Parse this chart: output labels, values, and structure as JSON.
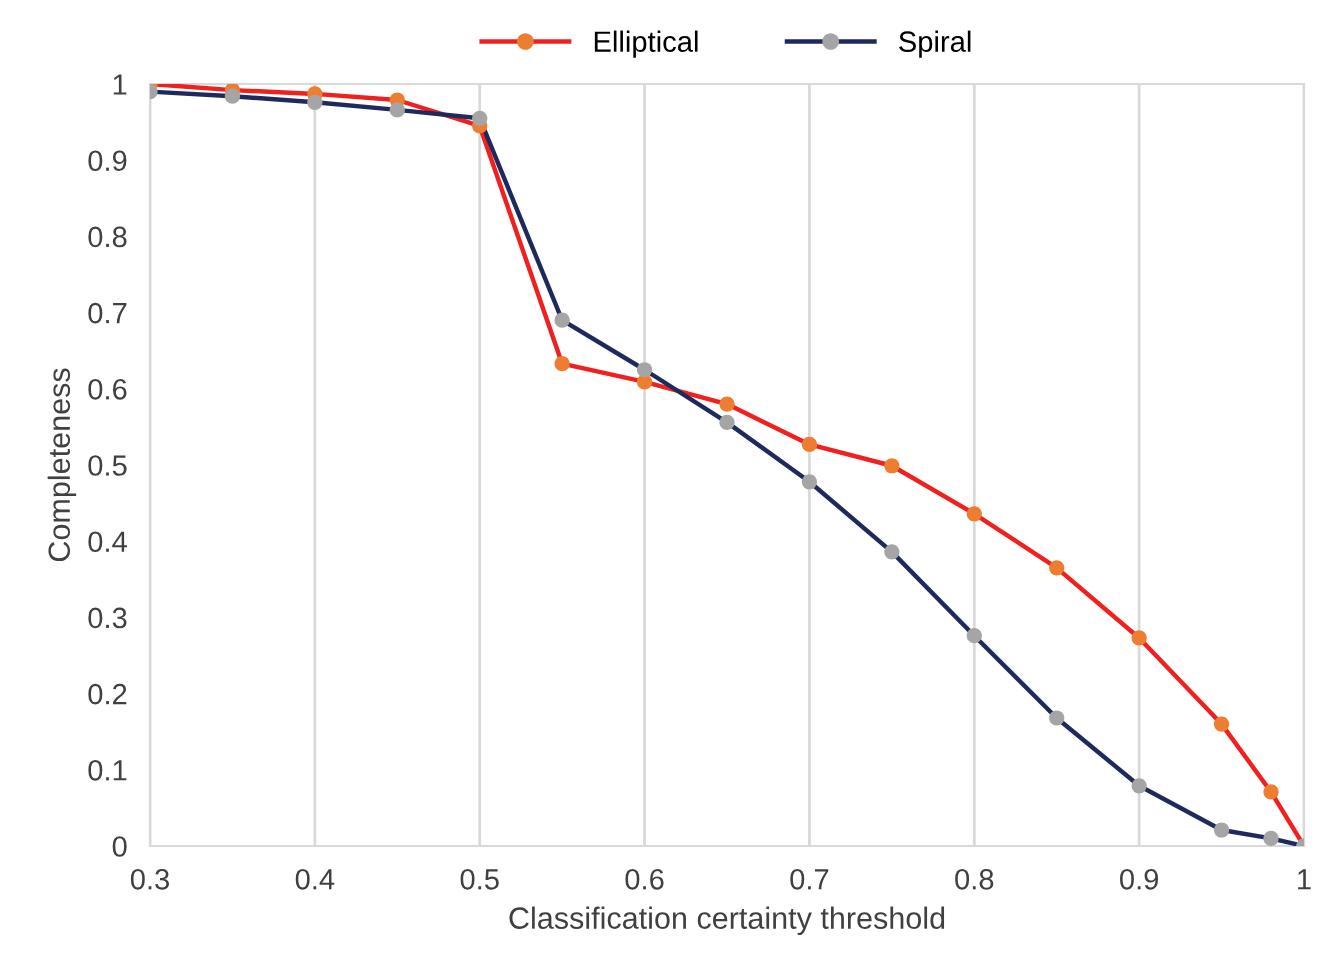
{
  "chart_data": {
    "type": "line",
    "xlabel": "Classification certainty threshold",
    "ylabel": "Completeness",
    "x": [
      0.3,
      0.35,
      0.4,
      0.45,
      0.5,
      0.55,
      0.6,
      0.65,
      0.7,
      0.75,
      0.8,
      0.85,
      0.9,
      0.95,
      0.98,
      1.0
    ],
    "series": [
      {
        "name": "Elliptical",
        "color": "#f0201f",
        "colors": [
          "#ed7d31",
          "#ed7d31",
          "#ed7d31",
          "#ed7d31",
          "#ed7d31",
          "#ed7d31",
          "#ed7d31",
          "#ed7d31",
          "#ed7d31",
          "#ed7d31",
          "#ed7d31",
          "#ed7d31",
          "#ed7d31",
          "#ed7d31",
          "#ed7d31",
          "#a5a5a5"
        ],
        "values": [
          1.0,
          0.992,
          0.987,
          0.979,
          0.945,
          0.633,
          0.609,
          0.58,
          0.527,
          0.499,
          0.436,
          0.365,
          0.273,
          0.16,
          0.071,
          0.0
        ]
      },
      {
        "name": "Spiral",
        "color": "#1f2a5c",
        "colors": [
          "#a5a5a5",
          "#a5a5a5",
          "#a5a5a5",
          "#a5a5a5",
          "#a5a5a5",
          "#a5a5a5",
          "#a5a5a5",
          "#a5a5a5",
          "#a5a5a5",
          "#a5a5a5",
          "#a5a5a5",
          "#a5a5a5",
          "#a5a5a5",
          "#a5a5a5",
          "#a5a5a5",
          "#a5a5a5"
        ],
        "values": [
          0.99,
          0.984,
          0.976,
          0.966,
          0.955,
          0.69,
          0.625,
          0.556,
          0.478,
          0.386,
          0.276,
          0.168,
          0.079,
          0.021,
          0.01,
          0.0
        ]
      }
    ],
    "xlim": [
      0.3,
      1.0
    ],
    "xticks": [
      0.3,
      0.4,
      0.5,
      0.6,
      0.7,
      0.8,
      0.9,
      1
    ],
    "ylim": [
      0,
      1.0
    ],
    "yticks": [
      0,
      0.1,
      0.2,
      0.3,
      0.4,
      0.5,
      0.6,
      0.7,
      0.8,
      0.9,
      1
    ],
    "grid": "x",
    "legend": "top",
    "marker": "circle",
    "line_style": "solid"
  }
}
